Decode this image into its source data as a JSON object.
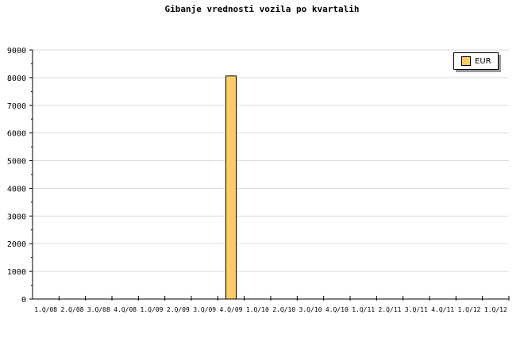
{
  "chart_data": {
    "type": "bar",
    "title": "Gibanje vrednosti vozila po kvartalih",
    "categories": [
      "1.Q/08",
      "2.Q/08",
      "3.Q/08",
      "4.Q/08",
      "1.Q/09",
      "2.Q/09",
      "3.Q/09",
      "4.Q/09",
      "1.Q/10",
      "2.Q/10",
      "3.Q/10",
      "4.Q/10",
      "1.Q/11",
      "2.Q/11",
      "3.Q/11",
      "4.Q/11",
      "1.Q/12",
      "1.Q/12"
    ],
    "series": [
      {
        "name": "EUR",
        "values": [
          0,
          0,
          0,
          0,
          0,
          0,
          0,
          8060,
          0,
          0,
          0,
          0,
          0,
          0,
          0,
          0,
          0,
          0
        ]
      }
    ],
    "ylim": [
      0,
      9000
    ],
    "yticks": [
      0,
      1000,
      2000,
      3000,
      4000,
      5000,
      6000,
      7000,
      8000,
      9000
    ],
    "grid": true,
    "legend": "top-right",
    "colors": {
      "bar": "#ffcc66",
      "grid": "#dddddd"
    }
  }
}
